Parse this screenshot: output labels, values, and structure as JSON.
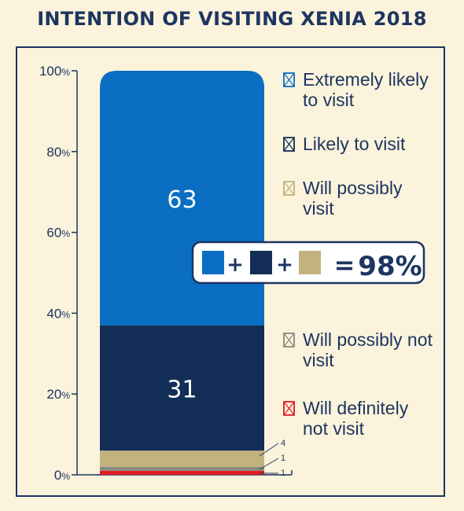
{
  "chart_data": {
    "type": "bar",
    "title": "INTENTION OF VISITING XENIA 2018",
    "stacked": true,
    "ylim": [
      0,
      100
    ],
    "yticks": [
      "0%",
      "20%",
      "40%",
      "60%",
      "80%",
      "100%"
    ],
    "series": [
      {
        "name": "Will definitely not visit",
        "value": 1,
        "label": "1",
        "color": "#e11b22"
      },
      {
        "name": "Will possibly not visit",
        "value": 1,
        "label": "1",
        "color": "#8a8a80"
      },
      {
        "name": "Will possibly visit",
        "value": 4,
        "label": "4",
        "color": "#c2b27e"
      },
      {
        "name": "Likely to visit",
        "value": 31,
        "label": "31",
        "color": "#122d56"
      },
      {
        "name": "Extremely likely to visit",
        "value": 63,
        "label": "63",
        "color": "#0a6ec2"
      }
    ],
    "legend_top": [
      {
        "lines": [
          "Extremely likely",
          "to visit"
        ],
        "color": "#0a6ec2"
      },
      {
        "lines": [
          "Likely to visit"
        ],
        "color": "#122d56"
      },
      {
        "lines": [
          "Will possibly",
          "visit"
        ],
        "color": "#c2b27e"
      }
    ],
    "legend_bottom": [
      {
        "lines": [
          "Will possibly not",
          "visit"
        ],
        "color": "#8a8a80"
      },
      {
        "lines": [
          "Will definitely",
          "not visit"
        ],
        "color": "#e11b22"
      }
    ],
    "summary": {
      "plus": "+",
      "equals": "=",
      "value": "98%"
    }
  }
}
